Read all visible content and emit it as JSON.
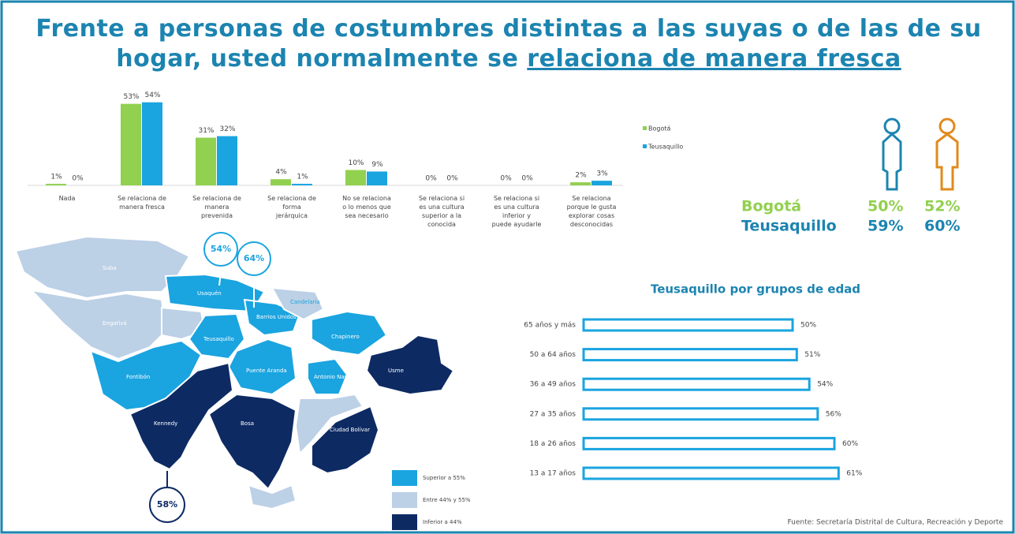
{
  "title": "Frente a personas de costumbres distintas a las suyas o de las de su hogar, usted normalmente se",
  "title_emphasis": "relaciona de manera fresca",
  "chart_data": [
    {
      "type": "bar",
      "categories": [
        "Nada",
        "Se relaciona de manera fresca",
        "Se relaciona de manera prevenida",
        "Se relaciona de forma jerárquica",
        "No se relaciona o lo menos que sea necesario",
        "Se relaciona si es una cultura superior a la conocida",
        "Se relaciona si es una cultura inferior y puede ayudarle",
        "Se relaciona porque le gusta explorar cosas desconocidas"
      ],
      "series": [
        {
          "name": "Bogotá",
          "color": "#92d050",
          "values": [
            1,
            53,
            31,
            4,
            10,
            0,
            0,
            2
          ],
          "value_labels": [
            "1%",
            "53%",
            "31%",
            "4%",
            "10%",
            "0%",
            "0%",
            "2%"
          ]
        },
        {
          "name": "Teusaquillo",
          "color": "#1aa4e0",
          "values": [
            0,
            54,
            32,
            1,
            9,
            0,
            0,
            3
          ],
          "value_labels": [
            "0%",
            "54%",
            "32%",
            "1%",
            "9%",
            "0%",
            "0%",
            "3%"
          ]
        }
      ],
      "ylim": [
        0,
        60
      ]
    },
    {
      "type": "hbar",
      "title": "Teusaquillo por grupos de edad",
      "categories": [
        "65 años y más",
        "50 a 64 años",
        "36 a 49 años",
        "27 a 35 años",
        "18 a 26 años",
        "13 a 17 años"
      ],
      "values": [
        50,
        51,
        54,
        56,
        60,
        61
      ],
      "value_labels": [
        "50%",
        "51%",
        "54%",
        "56%",
        "60%",
        "61%"
      ],
      "color": "#1aa4e0",
      "xlim": [
        0,
        100
      ]
    }
  ],
  "gender": {
    "rows": [
      {
        "name": "Bogotá",
        "women": "50%",
        "men": "52%"
      },
      {
        "name": "Teusaquillo",
        "women": "59%",
        "men": "60%"
      }
    ]
  },
  "map": {
    "callouts": [
      "54%",
      "64%",
      "58%"
    ],
    "legend": [
      "Superior a 55%",
      "Entre 44% y 55%",
      "Inferior a 44%"
    ],
    "localities": [
      "Suba",
      "Engativá",
      "Usaquén",
      "Fontibón",
      "Teusaquillo",
      "Barrios Unidos",
      "Candelaria",
      "Chapinero",
      "Puente Aranda",
      "Antonio Nariño",
      "Usme",
      "Kennedy",
      "Bosa",
      "Ciudad Bolívar"
    ]
  },
  "source": "Fuente: Secretaría Distrital de Cultura, Recreación y Deporte"
}
